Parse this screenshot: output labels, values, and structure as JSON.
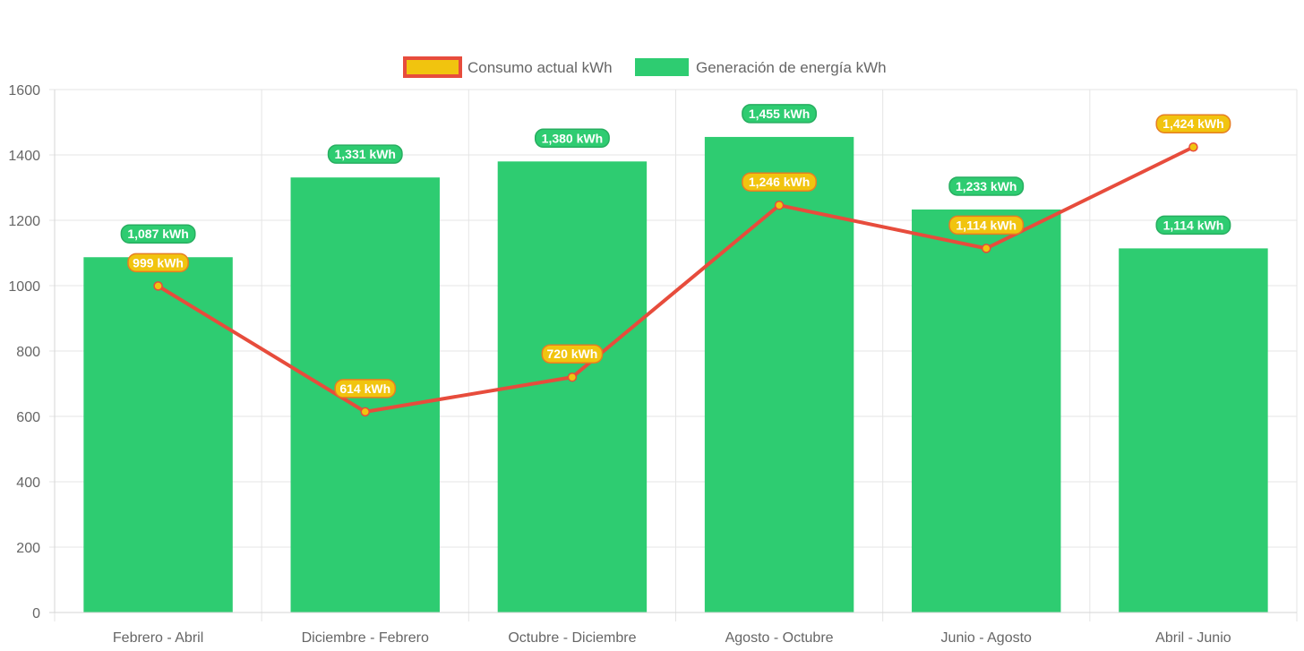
{
  "chart_data": {
    "type": "bar",
    "categories": [
      "Febrero - Abril",
      "Diciembre - Febrero",
      "Octubre - Diciembre",
      "Agosto - Octubre",
      "Junio - Agosto",
      "Abril - Junio"
    ],
    "series": [
      {
        "name": "Consumo actual kWh",
        "type": "line",
        "values": [
          999,
          614,
          720,
          1246,
          1114,
          1424
        ],
        "labels": [
          "999 kWh",
          "614 kWh",
          "720 kWh",
          "1,246 kWh",
          "1,114 kWh",
          "1,424 kWh"
        ],
        "color": "#e74c3c",
        "fill_color": "#f1c40f"
      },
      {
        "name": "Generación de energía kWh",
        "type": "bar",
        "values": [
          1087,
          1331,
          1380,
          1455,
          1233,
          1114
        ],
        "labels": [
          "1,087 kWh",
          "1,331 kWh",
          "1,380 kWh",
          "1,455 kWh",
          "1,233 kWh",
          "1,114 kWh"
        ],
        "color": "#2ecc71"
      }
    ],
    "yticks": [
      "0",
      "200",
      "400",
      "600",
      "800",
      "1000",
      "1200",
      "1400",
      "1600"
    ],
    "ylim": [
      0,
      1600
    ],
    "grid": true,
    "legend": "top-center",
    "title": "",
    "xlabel": "",
    "ylabel": ""
  }
}
